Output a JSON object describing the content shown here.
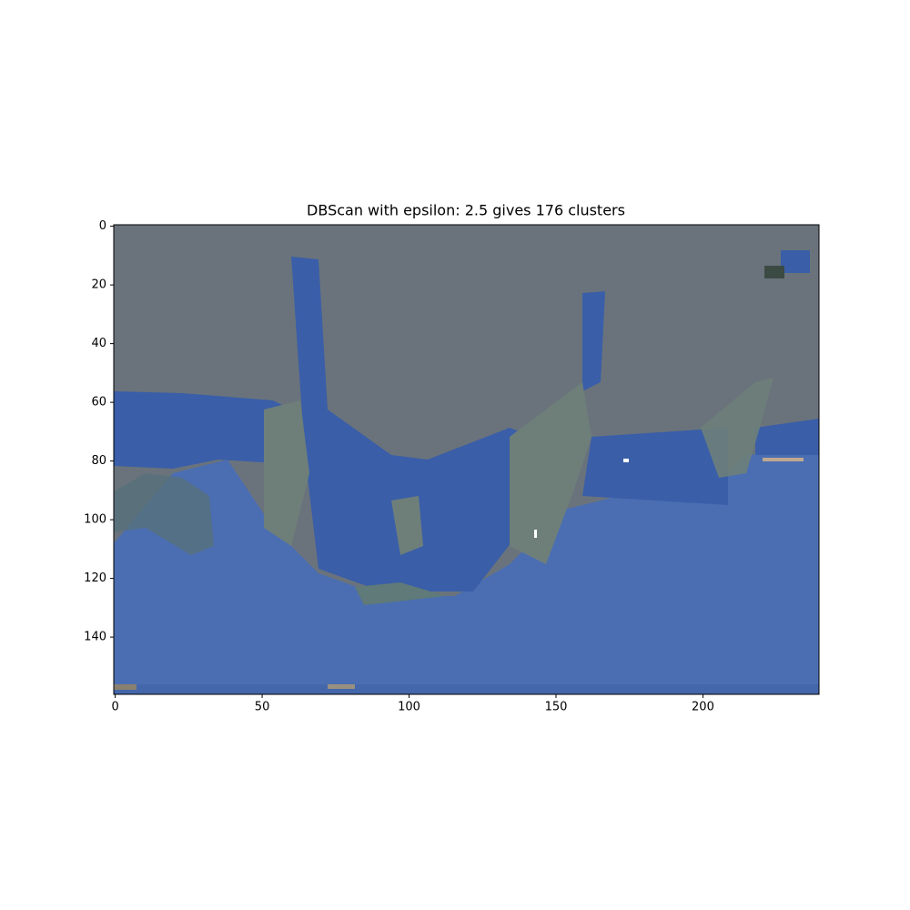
{
  "chart_data": {
    "type": "image",
    "title": "DBScan with epsilon: 2.5 gives 176 clusters",
    "xlim": [
      -0.5,
      239.5
    ],
    "xticks": [
      0,
      50,
      100,
      150,
      200
    ],
    "ylim": [
      159.5,
      -0.5
    ],
    "yticks": [
      0,
      20,
      40,
      60,
      80,
      100,
      120,
      140
    ]
  }
}
